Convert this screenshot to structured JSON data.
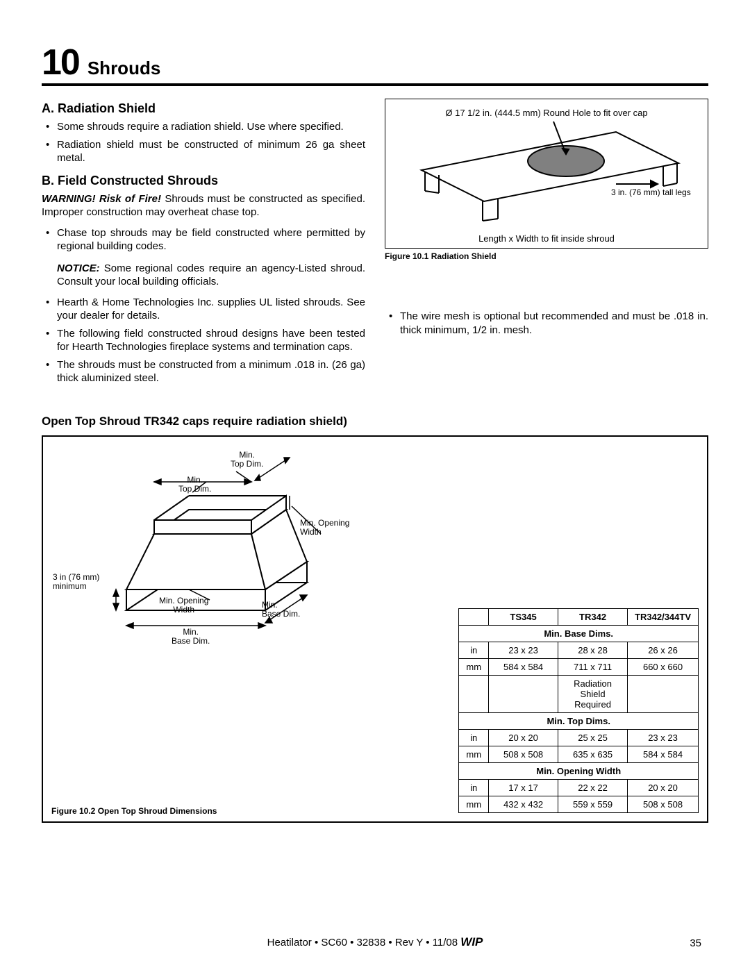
{
  "chapter": {
    "number": "10",
    "title": "Shrouds"
  },
  "sectionA": {
    "heading": "A. Radiation Shield",
    "bullets": [
      "Some shrouds require a radiation shield. Use where speciﬁed.",
      "Radiation shield must be constructed of minimum 26 ga sheet metal."
    ]
  },
  "sectionB": {
    "heading": "B. Field Constructed Shrouds",
    "warning_label": "WARNING! Risk of Fire!",
    "warning_text": " Shrouds must be constructed as speciﬁed. Improper construction may overheat chase top.",
    "bullets1": [
      "Chase top shrouds may be ﬁeld constructed where permitted by regional building codes."
    ],
    "notice_label": "NOTICE:",
    "notice_text": " Some regional codes require an agency-Listed shroud. Consult your local building ofﬁcials.",
    "bullets2": [
      "Hearth & Home Technologies Inc. supplies UL listed shrouds. See your dealer for details.",
      "The following ﬁeld constructed shroud designs have been tested for Hearth Technologies ﬁreplace systems and termination caps.",
      "The shrouds must be constructed from a minimum .018 in. (26 ga) thick aluminized steel."
    ],
    "right_bullet": "The wire mesh is optional but recommended and must be .018 in. thick minimum, 1/2 in. mesh."
  },
  "fig1": {
    "hole_label": "Ø 17 1/2 in. (444.5 mm) Round Hole to fit over cap",
    "legs_label": "3 in. (76 mm) tall legs",
    "bottom_label": "Length x Width to fit inside shroud",
    "caption": "Figure 10.1 Radiation Shield"
  },
  "openTop": {
    "heading": "Open Top Shroud TR342 caps require radiation shield)"
  },
  "fig2": {
    "labels": {
      "min_top_dim1": "Min.\nTop Dim.",
      "min_top_dim2": "Min.\nTop Dim.",
      "min_opening_width1": "Min. Opening\nWidth",
      "min_opening_width2": "Min. Opening\nWidth",
      "min_base_dim1": "Min.\nBase Dim.",
      "min_base_dim2": "Min.\nBase Dim.",
      "minimum_3in": "3 in (76 mm)\nminimum"
    },
    "caption": "Figure 10.2   Open Top Shroud Dimensions"
  },
  "table": {
    "headers": [
      "",
      "TS345",
      "TR342",
      "TR342/344TV"
    ],
    "sections": [
      {
        "title": "Min. Base Dims.",
        "rows": [
          [
            "in",
            "23 x 23",
            "28 x 28",
            "26 x 26"
          ],
          [
            "mm",
            "584 x 584",
            "711 x 711",
            "660 x 660"
          ],
          [
            "",
            "",
            "Radiation Shield Required",
            ""
          ]
        ]
      },
      {
        "title": "Min. Top Dims.",
        "rows": [
          [
            "in",
            "20 x 20",
            "25 x 25",
            "23 x 23"
          ],
          [
            "mm",
            "508 x 508",
            "635 x 635",
            "584 x 584"
          ]
        ]
      },
      {
        "title": "Min. Opening Width",
        "rows": [
          [
            "in",
            "17 x 17",
            "22 x 22",
            "20 x 20"
          ],
          [
            "mm",
            "432 x 432",
            "559 x 559",
            "508 x 508"
          ]
        ]
      }
    ]
  },
  "footer": {
    "text": "Heatilator • SC60 • 32838 • Rev Y • 11/08 ",
    "wip": "WIP",
    "page": "35"
  },
  "colors": {
    "stroke": "#000000",
    "ellipse_fill": "#808080",
    "bg": "#ffffff"
  }
}
